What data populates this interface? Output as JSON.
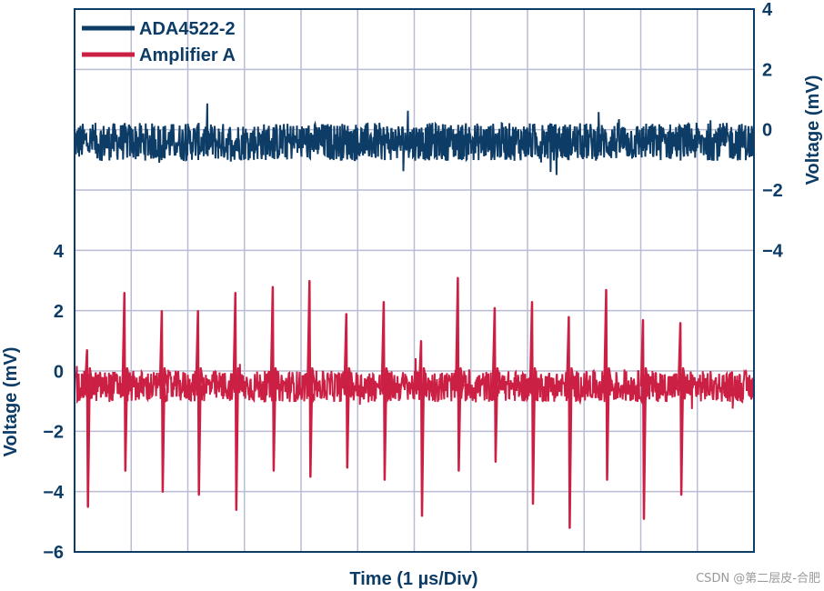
{
  "chart_data": {
    "type": "line",
    "xlabel": "Time (1 µs/Div)",
    "ylabel_left": "Voltage (mV)",
    "ylabel_right": "Voltage (mV)",
    "x_divisions": 12,
    "x_range_us": [
      0,
      12
    ],
    "grid": true,
    "legend_position": "top-left",
    "left_axis": {
      "range": [
        -6,
        4
      ],
      "ticks": [
        {
          "value": 4,
          "label": "4"
        },
        {
          "value": 2,
          "label": "2"
        },
        {
          "value": 0,
          "label": "0"
        },
        {
          "value": -2,
          "label": "−2"
        },
        {
          "value": -4,
          "label": "−4"
        },
        {
          "value": -6,
          "label": "−6"
        }
      ]
    },
    "right_axis": {
      "range": [
        -10,
        4
      ],
      "ticks": [
        {
          "value": 4,
          "label": "4"
        },
        {
          "value": 2,
          "label": "2"
        },
        {
          "value": 0,
          "label": "0"
        },
        {
          "value": -2,
          "label": "−2"
        },
        {
          "value": -4,
          "label": "−4"
        }
      ]
    },
    "series": [
      {
        "name": "ADA4522-2",
        "color": "#0d3c66",
        "axis": "right",
        "baseline_mv": -0.4,
        "noise_pp_mv": 0.9
      },
      {
        "name": "Amplifier A",
        "color": "#cc1f44",
        "axis": "left",
        "baseline_mv": -0.5,
        "noise_pp_mv": 0.8,
        "spikes": [
          {
            "t_us": 0.22,
            "peak_mv": 0.7,
            "trough_mv": -4.5
          },
          {
            "t_us": 0.88,
            "peak_mv": 2.6,
            "trough_mv": -3.3
          },
          {
            "t_us": 1.54,
            "peak_mv": 2.0,
            "trough_mv": -4.0
          },
          {
            "t_us": 2.18,
            "peak_mv": 2.0,
            "trough_mv": -4.1
          },
          {
            "t_us": 2.84,
            "peak_mv": 2.6,
            "trough_mv": -4.6
          },
          {
            "t_us": 3.5,
            "peak_mv": 2.8,
            "trough_mv": -3.3
          },
          {
            "t_us": 4.15,
            "peak_mv": 3.0,
            "trough_mv": -3.5
          },
          {
            "t_us": 4.8,
            "peak_mv": 1.9,
            "trough_mv": -3.2
          },
          {
            "t_us": 5.46,
            "peak_mv": 2.3,
            "trough_mv": -3.6
          },
          {
            "t_us": 6.12,
            "peak_mv": 1.0,
            "trough_mv": -4.8
          },
          {
            "t_us": 6.77,
            "peak_mv": 3.1,
            "trough_mv": -3.3
          },
          {
            "t_us": 7.42,
            "peak_mv": 2.1,
            "trough_mv": -3.0
          },
          {
            "t_us": 8.08,
            "peak_mv": 2.3,
            "trough_mv": -4.4
          },
          {
            "t_us": 8.73,
            "peak_mv": 1.8,
            "trough_mv": -5.2
          },
          {
            "t_us": 9.39,
            "peak_mv": 2.7,
            "trough_mv": -3.6
          },
          {
            "t_us": 10.04,
            "peak_mv": 1.7,
            "trough_mv": -4.9
          },
          {
            "t_us": 10.7,
            "peak_mv": 1.6,
            "trough_mv": -4.1
          }
        ]
      }
    ]
  },
  "watermark": "CSDN @第二层皮-合肥"
}
